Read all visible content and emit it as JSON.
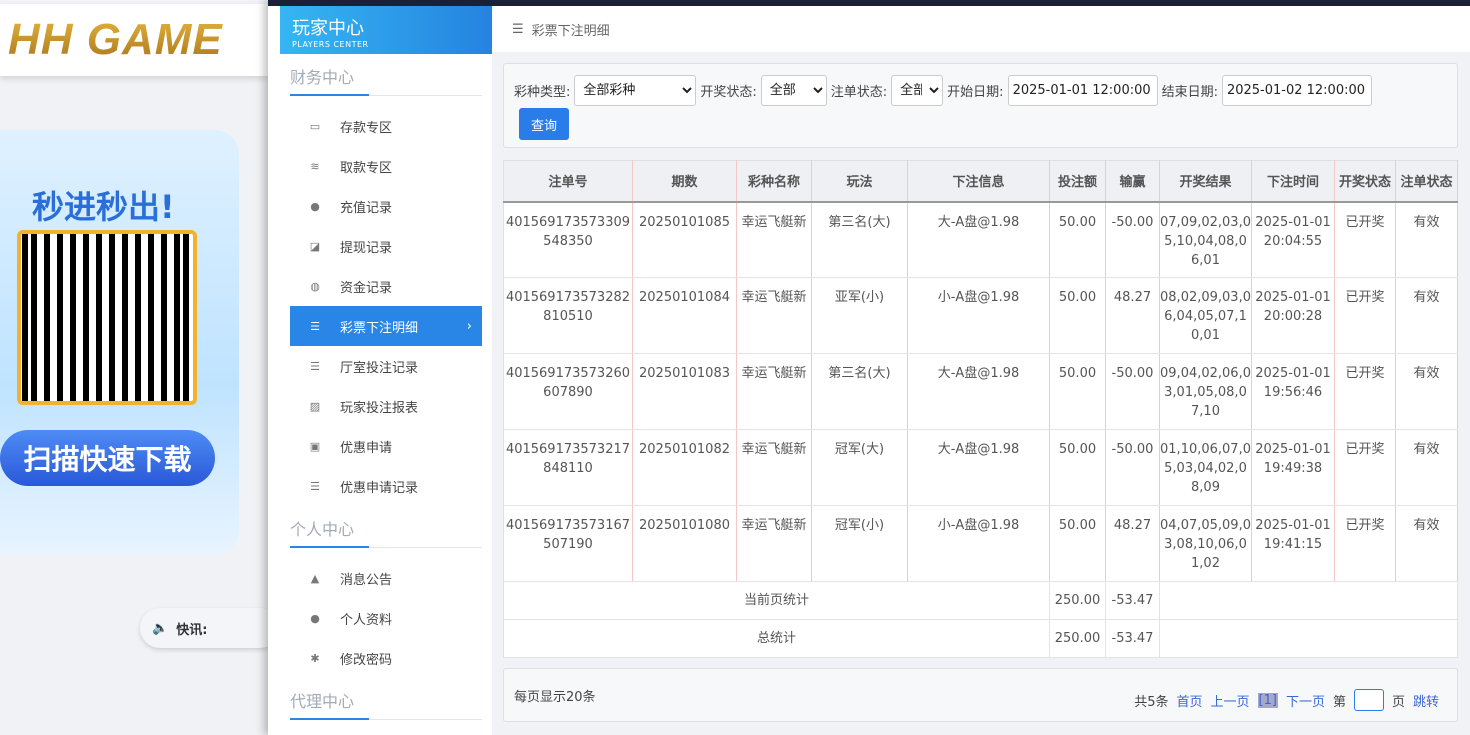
{
  "brand": {
    "logo_text": "HH GAME",
    "promo_title": "秒进秒出!",
    "promo_button": "扫描快速下载",
    "news_label": "快讯:"
  },
  "sidebar": {
    "title": "玩家中心",
    "subtitle": "PLAYERS CENTER",
    "sections": [
      {
        "title": "财务中心",
        "items": [
          {
            "label": "存款专区",
            "icon": "card-icon"
          },
          {
            "label": "取款专区",
            "icon": "cash-icon"
          },
          {
            "label": "充值记录",
            "icon": "money-bag-icon"
          },
          {
            "label": "提现记录",
            "icon": "withdraw-icon"
          },
          {
            "label": "资金记录",
            "icon": "funds-icon"
          },
          {
            "label": "彩票下注明细",
            "icon": "list-icon",
            "active": true
          },
          {
            "label": "厅室投注记录",
            "icon": "list-icon"
          },
          {
            "label": "玩家投注报表",
            "icon": "chart-icon"
          },
          {
            "label": "优惠申请",
            "icon": "gift-icon"
          },
          {
            "label": "优惠申请记录",
            "icon": "list-icon"
          }
        ]
      },
      {
        "title": "个人中心",
        "items": [
          {
            "label": "消息公告",
            "icon": "bell-icon"
          },
          {
            "label": "个人资料",
            "icon": "user-icon"
          },
          {
            "label": "修改密码",
            "icon": "gear-icon"
          }
        ]
      },
      {
        "title": "代理中心",
        "items": []
      }
    ]
  },
  "breadcrumb": "彩票下注明细",
  "filter": {
    "lottery_type_label": "彩种类型:",
    "lottery_type": "全部彩种",
    "draw_status_label": "开奖状态:",
    "draw_status": "全部",
    "bet_status_label": "注单状态:",
    "bet_status": "全部",
    "start_label": "开始日期:",
    "start": "2025-01-01 12:00:00",
    "end_label": "结束日期:",
    "end": "2025-01-02 12:00:00",
    "query": "查询"
  },
  "table": {
    "headers": [
      "注单号",
      "期数",
      "彩种名称",
      "玩法",
      "下注信息",
      "投注额",
      "输赢",
      "开奖结果",
      "下注时间",
      "开奖状态",
      "注单状态"
    ],
    "rows": [
      [
        "401569173573309548350",
        "20250101085",
        "幸运飞艇新",
        "第三名(大)",
        "大-A盘@1.98",
        "50.00",
        "-50.00",
        "07,09,02,03,05,10,04,08,06,01",
        "2025-01-01 20:04:55",
        "已开奖",
        "有效"
      ],
      [
        "401569173573282810510",
        "20250101084",
        "幸运飞艇新",
        "亚军(小)",
        "小-A盘@1.98",
        "50.00",
        "48.27",
        "08,02,09,03,06,04,05,07,10,01",
        "2025-01-01 20:00:28",
        "已开奖",
        "有效"
      ],
      [
        "401569173573260607890",
        "20250101083",
        "幸运飞艇新",
        "第三名(大)",
        "大-A盘@1.98",
        "50.00",
        "-50.00",
        "09,04,02,06,03,01,05,08,07,10",
        "2025-01-01 19:56:46",
        "已开奖",
        "有效"
      ],
      [
        "401569173573217848110",
        "20250101082",
        "幸运飞艇新",
        "冠军(大)",
        "大-A盘@1.98",
        "50.00",
        "-50.00",
        "01,10,06,07,05,03,04,02,08,09",
        "2025-01-01 19:49:38",
        "已开奖",
        "有效"
      ],
      [
        "401569173573167507190",
        "20250101080",
        "幸运飞艇新",
        "冠军(小)",
        "小-A盘@1.98",
        "50.00",
        "48.27",
        "04,07,05,09,03,08,10,06,01,02",
        "2025-01-01 19:41:15",
        "已开奖",
        "有效"
      ]
    ],
    "page_total": {
      "label": "当前页统计",
      "amount": "250.00",
      "win": "-53.47"
    },
    "grand_total": {
      "label": "总统计",
      "amount": "250.00",
      "win": "-53.47"
    }
  },
  "pager": {
    "per_page": "每页显示20条",
    "total": "共5条",
    "first": "首页",
    "prev": "上一页",
    "current": "[1]",
    "next": "下一页",
    "page_prefix": "第",
    "page_suffix": "页",
    "jump": "跳转"
  },
  "colors": {
    "accent": "#2a86e6",
    "button": "#2a7ce8"
  }
}
